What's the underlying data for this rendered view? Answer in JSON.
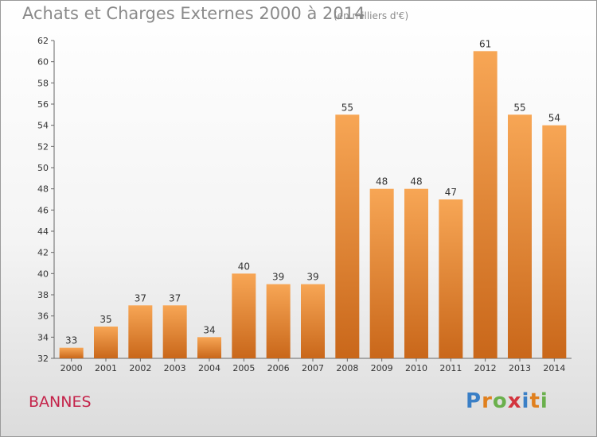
{
  "header": {
    "title": "Achats et Charges Externes 2000 à 2014",
    "subtitle": "(en milliers d'€)"
  },
  "footer": {
    "place": "BANNES",
    "logo_text": "Proxiti",
    "logo_colors": [
      "#3a7fc6",
      "#e0801e",
      "#6ab04c",
      "#d3343e",
      "#3a7fc6",
      "#e0801e",
      "#6ab04c"
    ]
  },
  "chart_data": {
    "type": "bar",
    "categories": [
      "2000",
      "2001",
      "2002",
      "2003",
      "2004",
      "2005",
      "2006",
      "2007",
      "2008",
      "2009",
      "2010",
      "2011",
      "2012",
      "2013",
      "2014"
    ],
    "values": [
      33,
      35,
      37,
      37,
      34,
      40,
      39,
      39,
      55,
      48,
      48,
      47,
      61,
      55,
      54
    ],
    "ylim": [
      32,
      62
    ],
    "yticks": [
      32,
      34,
      36,
      38,
      40,
      42,
      44,
      46,
      48,
      50,
      52,
      54,
      56,
      58,
      60,
      62
    ],
    "grid": false,
    "bar_color_top": "#f7a655",
    "bar_color_bottom": "#c9671a"
  }
}
